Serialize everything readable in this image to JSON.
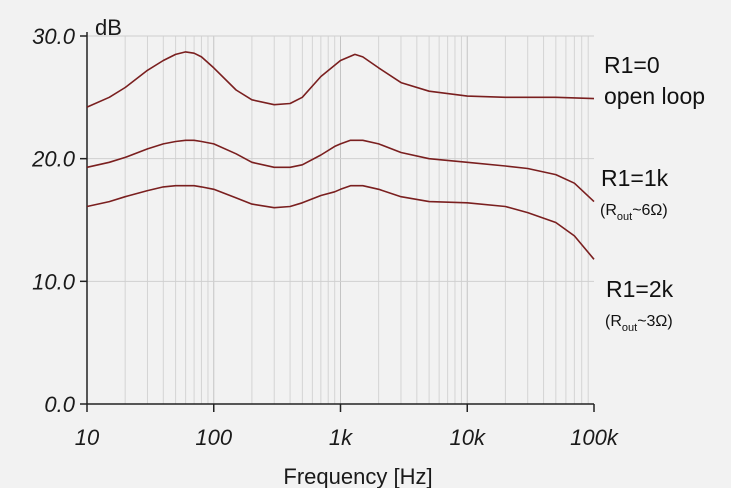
{
  "chart_data": {
    "type": "line",
    "x_scale": "log",
    "xlim": [
      10,
      100000
    ],
    "ylim": [
      0,
      30
    ],
    "grid": true,
    "y_unit": "dB",
    "xlabel": "Frequency [Hz]",
    "x_ticks": [
      {
        "value": 10,
        "label": "10"
      },
      {
        "value": 100,
        "label": "100"
      },
      {
        "value": 1000,
        "label": "1k"
      },
      {
        "value": 10000,
        "label": "10k"
      },
      {
        "value": 100000,
        "label": "100k"
      }
    ],
    "y_ticks": [
      {
        "value": 0,
        "label": "0.0"
      },
      {
        "value": 10,
        "label": "10.0"
      },
      {
        "value": 20,
        "label": "20.0"
      },
      {
        "value": 30,
        "label": "30.0"
      }
    ],
    "series": [
      {
        "key": "open_loop",
        "color": "#7a1f1f",
        "x": [
          10,
          15,
          20,
          30,
          40,
          50,
          60,
          70,
          80,
          100,
          150,
          200,
          300,
          400,
          500,
          700,
          1000,
          1300,
          1500,
          2000,
          3000,
          5000,
          10000,
          20000,
          50000,
          100000
        ],
        "y": [
          24.2,
          25.0,
          25.8,
          27.2,
          28.0,
          28.5,
          28.7,
          28.6,
          28.3,
          27.4,
          25.6,
          24.8,
          24.4,
          24.5,
          25.0,
          26.7,
          28.0,
          28.5,
          28.3,
          27.4,
          26.2,
          25.5,
          25.1,
          25.0,
          25.0,
          24.9
        ]
      },
      {
        "key": "r1_1k",
        "color": "#7a1f1f",
        "x": [
          10,
          15,
          20,
          30,
          40,
          50,
          60,
          70,
          80,
          100,
          150,
          200,
          300,
          400,
          500,
          700,
          900,
          1000,
          1200,
          1500,
          2000,
          3000,
          5000,
          10000,
          20000,
          30000,
          50000,
          70000,
          100000
        ],
        "y": [
          19.3,
          19.7,
          20.1,
          20.8,
          21.2,
          21.4,
          21.5,
          21.5,
          21.4,
          21.2,
          20.4,
          19.7,
          19.3,
          19.3,
          19.5,
          20.3,
          21.0,
          21.2,
          21.5,
          21.5,
          21.2,
          20.5,
          20.0,
          19.7,
          19.4,
          19.2,
          18.7,
          18.0,
          16.5
        ]
      },
      {
        "key": "r1_2k",
        "color": "#7a1f1f",
        "x": [
          10,
          15,
          20,
          30,
          40,
          50,
          60,
          70,
          80,
          100,
          150,
          200,
          300,
          400,
          500,
          700,
          900,
          1000,
          1200,
          1500,
          2000,
          3000,
          5000,
          10000,
          20000,
          30000,
          50000,
          70000,
          100000
        ],
        "y": [
          16.1,
          16.5,
          16.9,
          17.4,
          17.7,
          17.8,
          17.8,
          17.8,
          17.7,
          17.5,
          16.8,
          16.3,
          16.0,
          16.1,
          16.4,
          17.0,
          17.3,
          17.5,
          17.8,
          17.8,
          17.5,
          16.9,
          16.5,
          16.4,
          16.1,
          15.6,
          14.8,
          13.7,
          11.8
        ]
      }
    ],
    "annotations": [
      {
        "key": "open_loop_r1",
        "text": "R1=0"
      },
      {
        "key": "open_loop_text",
        "text": "open loop"
      },
      {
        "key": "r1_1k_label",
        "text": "R1=1k"
      },
      {
        "key": "r1_1k_rout",
        "R": "R",
        "sub": "out",
        "rest": "~6Ω"
      },
      {
        "key": "r1_2k_label",
        "text": "R1=2k"
      },
      {
        "key": "r1_2k_rout",
        "R": "R",
        "sub": "out",
        "rest": "~3Ω"
      }
    ]
  }
}
